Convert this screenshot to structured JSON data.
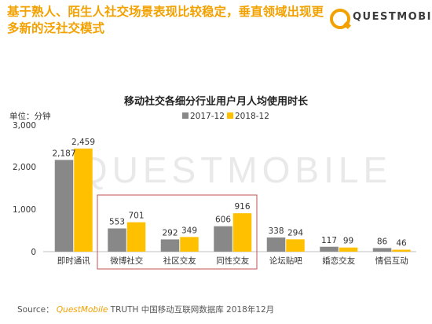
{
  "headline": "基于熟人、陌生人社交场景表现比较稳定，垂直领域出现更多新的泛社交模式",
  "logo": {
    "text": "QUESTMOBILE"
  },
  "watermark": "QUESTMOBILE",
  "source": {
    "label": "Source：",
    "brand": "QuestMobile",
    "rest": " TRUTH 中国移动互联网数据库 2018年12月"
  },
  "colors": {
    "series_2017": "#888888",
    "series_2018": "#ffc000",
    "highlight_box": "#c0504d",
    "accent": "#f2a100"
  },
  "chart_data": {
    "type": "bar",
    "title": "移动社交各细分行业用户月人均使用时长",
    "unit_label": "单位：分钟",
    "categories": [
      "即时通讯",
      "微博社交",
      "社区交友",
      "同性交友",
      "论坛贴吧",
      "婚恋交友",
      "情侣互动"
    ],
    "series": [
      {
        "name": "2017-12",
        "values": [
          2187,
          553,
          292,
          606,
          338,
          117,
          86
        ]
      },
      {
        "name": "2018-12",
        "values": [
          2459,
          701,
          349,
          916,
          294,
          99,
          46
        ]
      }
    ],
    "y_ticks": [
      "0",
      "1,000",
      "2,000",
      "3,000"
    ],
    "ylim": [
      0,
      3000
    ],
    "grid": false,
    "legend_position": "top",
    "highlighted_categories": [
      "微博社交",
      "社区交友",
      "同性交友"
    ]
  }
}
